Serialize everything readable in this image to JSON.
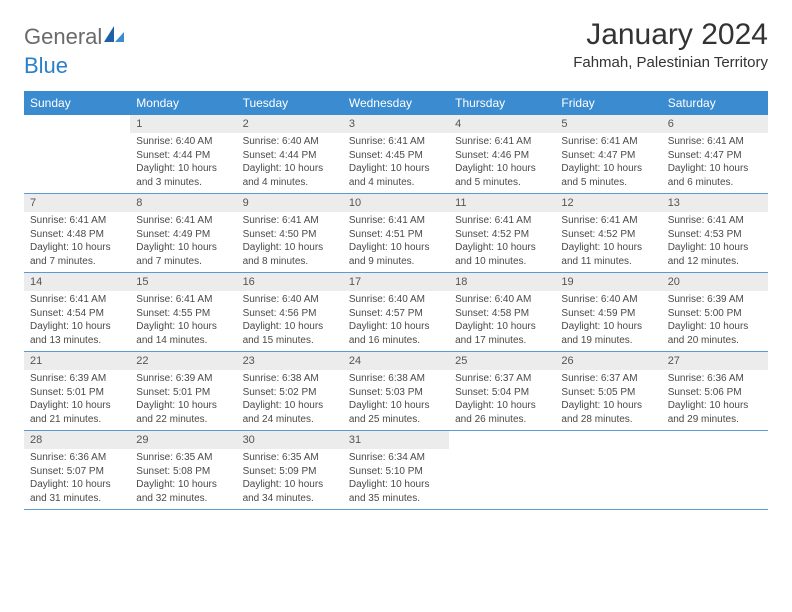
{
  "brand": {
    "general": "General",
    "blue": "Blue"
  },
  "title": "January 2024",
  "location": "Fahmah, Palestinian Territory",
  "colors": {
    "header_bg": "#3b8bd0",
    "header_text": "#ffffff",
    "daynum_bg": "#ececec",
    "text": "#4a4a4a",
    "rule": "#5a9bd5",
    "logo_gray": "#6a6a6a",
    "logo_blue": "#2a7fc9"
  },
  "days_of_week": [
    "Sunday",
    "Monday",
    "Tuesday",
    "Wednesday",
    "Thursday",
    "Friday",
    "Saturday"
  ],
  "weeks": [
    [
      {
        "n": "",
        "empty": true
      },
      {
        "n": "1",
        "sunrise": "Sunrise: 6:40 AM",
        "sunset": "Sunset: 4:44 PM",
        "daylight": "Daylight: 10 hours and 3 minutes."
      },
      {
        "n": "2",
        "sunrise": "Sunrise: 6:40 AM",
        "sunset": "Sunset: 4:44 PM",
        "daylight": "Daylight: 10 hours and 4 minutes."
      },
      {
        "n": "3",
        "sunrise": "Sunrise: 6:41 AM",
        "sunset": "Sunset: 4:45 PM",
        "daylight": "Daylight: 10 hours and 4 minutes."
      },
      {
        "n": "4",
        "sunrise": "Sunrise: 6:41 AM",
        "sunset": "Sunset: 4:46 PM",
        "daylight": "Daylight: 10 hours and 5 minutes."
      },
      {
        "n": "5",
        "sunrise": "Sunrise: 6:41 AM",
        "sunset": "Sunset: 4:47 PM",
        "daylight": "Daylight: 10 hours and 5 minutes."
      },
      {
        "n": "6",
        "sunrise": "Sunrise: 6:41 AM",
        "sunset": "Sunset: 4:47 PM",
        "daylight": "Daylight: 10 hours and 6 minutes."
      }
    ],
    [
      {
        "n": "7",
        "sunrise": "Sunrise: 6:41 AM",
        "sunset": "Sunset: 4:48 PM",
        "daylight": "Daylight: 10 hours and 7 minutes."
      },
      {
        "n": "8",
        "sunrise": "Sunrise: 6:41 AM",
        "sunset": "Sunset: 4:49 PM",
        "daylight": "Daylight: 10 hours and 7 minutes."
      },
      {
        "n": "9",
        "sunrise": "Sunrise: 6:41 AM",
        "sunset": "Sunset: 4:50 PM",
        "daylight": "Daylight: 10 hours and 8 minutes."
      },
      {
        "n": "10",
        "sunrise": "Sunrise: 6:41 AM",
        "sunset": "Sunset: 4:51 PM",
        "daylight": "Daylight: 10 hours and 9 minutes."
      },
      {
        "n": "11",
        "sunrise": "Sunrise: 6:41 AM",
        "sunset": "Sunset: 4:52 PM",
        "daylight": "Daylight: 10 hours and 10 minutes."
      },
      {
        "n": "12",
        "sunrise": "Sunrise: 6:41 AM",
        "sunset": "Sunset: 4:52 PM",
        "daylight": "Daylight: 10 hours and 11 minutes."
      },
      {
        "n": "13",
        "sunrise": "Sunrise: 6:41 AM",
        "sunset": "Sunset: 4:53 PM",
        "daylight": "Daylight: 10 hours and 12 minutes."
      }
    ],
    [
      {
        "n": "14",
        "sunrise": "Sunrise: 6:41 AM",
        "sunset": "Sunset: 4:54 PM",
        "daylight": "Daylight: 10 hours and 13 minutes."
      },
      {
        "n": "15",
        "sunrise": "Sunrise: 6:41 AM",
        "sunset": "Sunset: 4:55 PM",
        "daylight": "Daylight: 10 hours and 14 minutes."
      },
      {
        "n": "16",
        "sunrise": "Sunrise: 6:40 AM",
        "sunset": "Sunset: 4:56 PM",
        "daylight": "Daylight: 10 hours and 15 minutes."
      },
      {
        "n": "17",
        "sunrise": "Sunrise: 6:40 AM",
        "sunset": "Sunset: 4:57 PM",
        "daylight": "Daylight: 10 hours and 16 minutes."
      },
      {
        "n": "18",
        "sunrise": "Sunrise: 6:40 AM",
        "sunset": "Sunset: 4:58 PM",
        "daylight": "Daylight: 10 hours and 17 minutes."
      },
      {
        "n": "19",
        "sunrise": "Sunrise: 6:40 AM",
        "sunset": "Sunset: 4:59 PM",
        "daylight": "Daylight: 10 hours and 19 minutes."
      },
      {
        "n": "20",
        "sunrise": "Sunrise: 6:39 AM",
        "sunset": "Sunset: 5:00 PM",
        "daylight": "Daylight: 10 hours and 20 minutes."
      }
    ],
    [
      {
        "n": "21",
        "sunrise": "Sunrise: 6:39 AM",
        "sunset": "Sunset: 5:01 PM",
        "daylight": "Daylight: 10 hours and 21 minutes."
      },
      {
        "n": "22",
        "sunrise": "Sunrise: 6:39 AM",
        "sunset": "Sunset: 5:01 PM",
        "daylight": "Daylight: 10 hours and 22 minutes."
      },
      {
        "n": "23",
        "sunrise": "Sunrise: 6:38 AM",
        "sunset": "Sunset: 5:02 PM",
        "daylight": "Daylight: 10 hours and 24 minutes."
      },
      {
        "n": "24",
        "sunrise": "Sunrise: 6:38 AM",
        "sunset": "Sunset: 5:03 PM",
        "daylight": "Daylight: 10 hours and 25 minutes."
      },
      {
        "n": "25",
        "sunrise": "Sunrise: 6:37 AM",
        "sunset": "Sunset: 5:04 PM",
        "daylight": "Daylight: 10 hours and 26 minutes."
      },
      {
        "n": "26",
        "sunrise": "Sunrise: 6:37 AM",
        "sunset": "Sunset: 5:05 PM",
        "daylight": "Daylight: 10 hours and 28 minutes."
      },
      {
        "n": "27",
        "sunrise": "Sunrise: 6:36 AM",
        "sunset": "Sunset: 5:06 PM",
        "daylight": "Daylight: 10 hours and 29 minutes."
      }
    ],
    [
      {
        "n": "28",
        "sunrise": "Sunrise: 6:36 AM",
        "sunset": "Sunset: 5:07 PM",
        "daylight": "Daylight: 10 hours and 31 minutes."
      },
      {
        "n": "29",
        "sunrise": "Sunrise: 6:35 AM",
        "sunset": "Sunset: 5:08 PM",
        "daylight": "Daylight: 10 hours and 32 minutes."
      },
      {
        "n": "30",
        "sunrise": "Sunrise: 6:35 AM",
        "sunset": "Sunset: 5:09 PM",
        "daylight": "Daylight: 10 hours and 34 minutes."
      },
      {
        "n": "31",
        "sunrise": "Sunrise: 6:34 AM",
        "sunset": "Sunset: 5:10 PM",
        "daylight": "Daylight: 10 hours and 35 minutes."
      },
      {
        "n": "",
        "empty": true
      },
      {
        "n": "",
        "empty": true
      },
      {
        "n": "",
        "empty": true
      }
    ]
  ]
}
